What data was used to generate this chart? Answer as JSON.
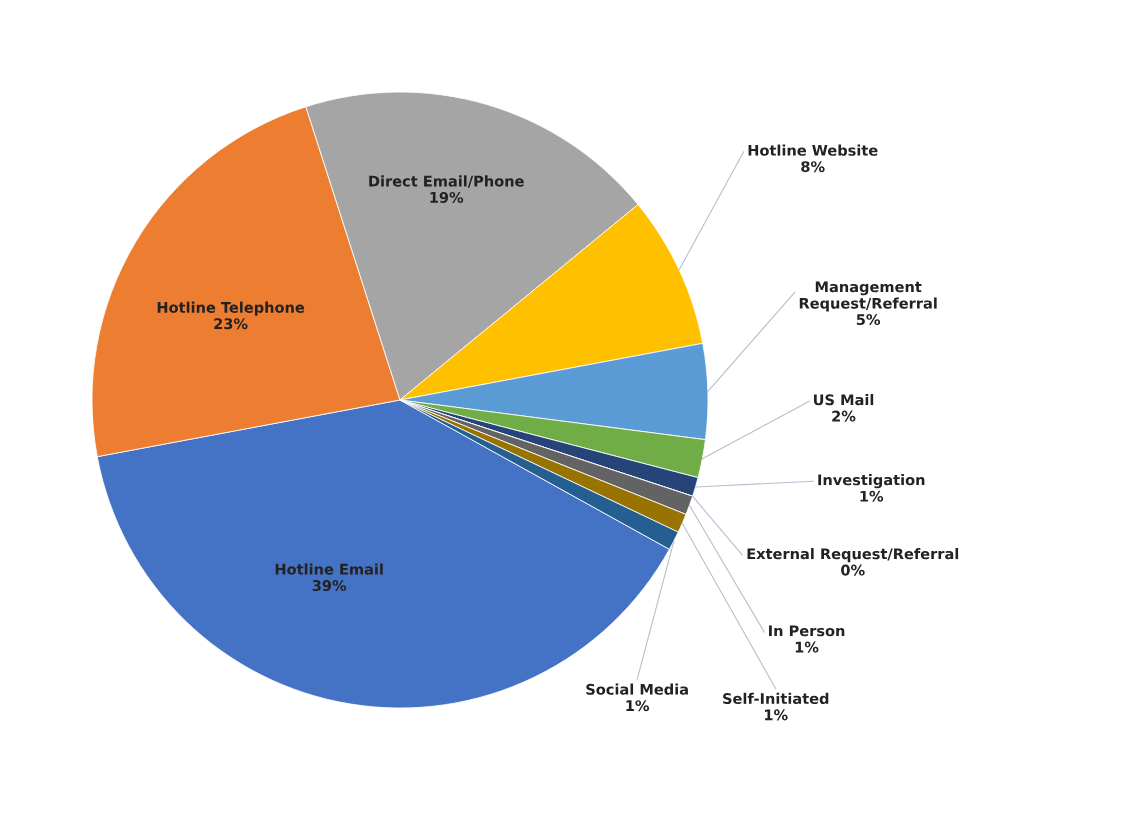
{
  "chart_data": {
    "type": "pie",
    "categories": [
      "Hotline Email",
      "Hotline Telephone",
      "Direct Email/Phone",
      "Hotline Website",
      "Management Request/Referral",
      "US Mail",
      "Investigation",
      "External Request/Referral",
      "In Person",
      "Self-Initiated",
      "Social Media"
    ],
    "values": [
      39,
      23,
      19,
      8,
      5,
      2,
      1,
      0,
      1,
      1,
      1
    ],
    "value_labels": [
      "39%",
      "23%",
      "19%",
      "8%",
      "5%",
      "2%",
      "1%",
      "0%",
      "1%",
      "1%",
      "1%"
    ],
    "colors": [
      "#4472c4",
      "#ed7d31",
      "#a5a5a5",
      "#ffc000",
      "#5b9bd5",
      "#70ad47",
      "#264478",
      "#9e480e",
      "#636363",
      "#997300",
      "#255e91"
    ],
    "legend": false
  }
}
